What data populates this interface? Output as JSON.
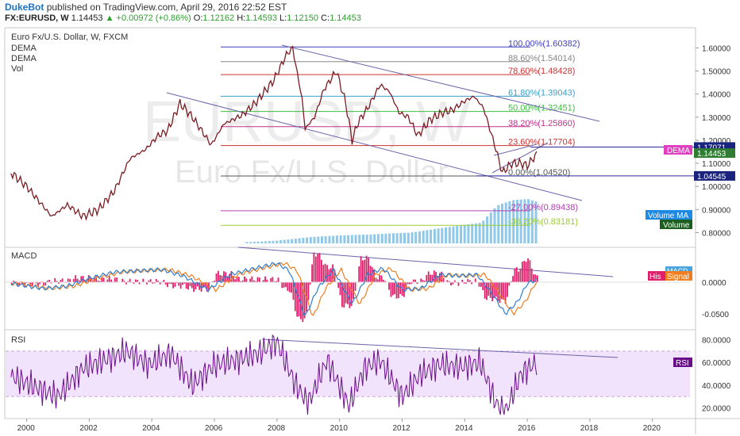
{
  "header": {
    "publisher": "DukeBot",
    "published_text": "published on TradingView.com, April 29, 2016 22:52 EST",
    "symbol": "FX:EURUSD, W",
    "last": "1.14453",
    "change": "+0.00972 (+0.86%)",
    "o_label": "O:",
    "o": "1.12162",
    "h_label": "H:",
    "h": "1.14593",
    "l_label": "L:",
    "l": "1.12150",
    "c_label": "C:",
    "c": "1.14453",
    "up_arrow": "▲"
  },
  "legend": {
    "title": "Euro Fx/U.S. Dollar, W, FXCM",
    "dema1": "DEMA",
    "dema2": "DEMA",
    "vol": "Vol"
  },
  "watermark": {
    "symbol": "EURUSD, W",
    "name": "Euro Fx/U.S. Dollar"
  },
  "panes": {
    "macd_label": "MACD",
    "rsi_label": "RSI"
  },
  "colors": {
    "price_line": "#7a1c22",
    "channel": "#6b63a8",
    "fib_100": "#3f3fbf",
    "fib_886": "#888888",
    "fib_786": "#cc3333",
    "fib_618": "#3aa0c8",
    "fib_50": "#3fbf3f",
    "fib_382": "#c0308a",
    "fib_236": "#cc3333",
    "fib_0": "#555555",
    "fib_m27": "#b040b0",
    "fib_m362": "#9acd32",
    "macd": "#2f7fd0",
    "signal": "#f07e20",
    "histogram": "#e0206a",
    "rsi": "#6a0d8a",
    "rsi_band": "#f1e3fb",
    "volume": "#8fc8e8"
  },
  "chart_data": [
    {
      "type": "line",
      "pane": "price",
      "title": "Euro Fx/U.S. Dollar, W, FXCM",
      "x_ticks": [
        "2000",
        "2002",
        "2004",
        "2006",
        "2008",
        "2010",
        "2012",
        "2014",
        "2016",
        "2018",
        "2020"
      ],
      "y_ticks": [
        "0.80000",
        "0.90000",
        "1.00000",
        "1.10000",
        "1.20000",
        "1.30000",
        "1.40000",
        "1.50000",
        "1.60000"
      ],
      "ylim": [
        0.75,
        1.67
      ],
      "xlim": [
        1999.3,
        2021.2
      ],
      "series": [
        {
          "x": [
            1999.5,
            2000.0,
            2000.8,
            2001.3,
            2001.8,
            2002.3,
            2002.8,
            2003.3,
            2003.8,
            2004.2,
            2004.5,
            2004.9,
            2005.3,
            2005.9,
            2006.3,
            2006.9,
            2007.3,
            2007.9,
            2008.3,
            2008.5,
            2008.8,
            2008.9,
            2009.2,
            2009.5,
            2009.9,
            2010.2,
            2010.4,
            2010.6,
            2010.9,
            2011.3,
            2011.6,
            2011.9,
            2012.2,
            2012.5,
            2012.9,
            2013.3,
            2013.6,
            2014.0,
            2014.3,
            2014.6,
            2014.8,
            2015.0,
            2015.2,
            2015.5,
            2015.8,
            2016.0,
            2016.3
          ],
          "values": [
            1.06,
            1.0,
            0.87,
            0.92,
            0.87,
            0.9,
            0.98,
            1.12,
            1.16,
            1.22,
            1.24,
            1.36,
            1.3,
            1.18,
            1.27,
            1.31,
            1.36,
            1.46,
            1.57,
            1.6,
            1.38,
            1.25,
            1.3,
            1.42,
            1.5,
            1.36,
            1.2,
            1.28,
            1.34,
            1.44,
            1.41,
            1.32,
            1.3,
            1.22,
            1.29,
            1.32,
            1.33,
            1.37,
            1.39,
            1.34,
            1.25,
            1.16,
            1.06,
            1.1,
            1.1,
            1.09,
            1.14
          ]
        },
        {
          "name": "Vol",
          "x": [
            2007.0,
            2008.0,
            2009.0,
            2010.0,
            2011.0,
            2012.0,
            2013.0,
            2014.0,
            2014.5,
            2015.0,
            2015.5,
            2016.0,
            2016.3
          ],
          "values": [
            1,
            2,
            4,
            5,
            6,
            8,
            10,
            12,
            13,
            24,
            28,
            30,
            29
          ]
        }
      ],
      "last_price_label": "1.14453",
      "price_levels": [
        "1.17071",
        "1.04545"
      ],
      "price_tags": {
        "dema": "DEMA",
        "volume_ma": "Volume MA",
        "volume": "Volume"
      },
      "annotations": {
        "fibonacci": [
          {
            "label": "100.00%(1.60382)",
            "value": 1.60382
          },
          {
            "label": "88.60%(1.54014)",
            "value": 1.54014
          },
          {
            "label": "78.60%(1.48428)",
            "value": 1.48428
          },
          {
            "label": "61.80%(1.39043)",
            "value": 1.39043
          },
          {
            "label": "50.00%(1.32451)",
            "value": 1.32451
          },
          {
            "label": "38.20%(1.25860)",
            "value": 1.2586
          },
          {
            "label": "23.60%(1.17704)",
            "value": 1.17704
          },
          {
            "label": "0.00%(1.04520)",
            "value": 1.0452
          },
          {
            "label": "-27.00%(0.89438)",
            "value": 0.89438
          },
          {
            "label": "-36.20%(0.83181)",
            "value": 0.83181
          }
        ]
      }
    },
    {
      "type": "line",
      "pane": "macd",
      "title": "MACD",
      "y_ticks": [
        "0.0000",
        "-0.0500"
      ],
      "ylim": [
        -0.07,
        0.05
      ],
      "series": [
        {
          "name": "MACD",
          "x": [
            1999.5,
            2000.5,
            2001.3,
            2002.0,
            2002.8,
            2003.5,
            2004.3,
            2005.0,
            2005.8,
            2006.5,
            2007.3,
            2008.0,
            2008.4,
            2008.9,
            2009.3,
            2009.8,
            2010.4,
            2010.9,
            2011.4,
            2012.0,
            2012.6,
            2013.2,
            2013.8,
            2014.4,
            2014.9,
            2015.3,
            2015.7,
            2016.0,
            2016.3
          ],
          "values": [
            -0.002,
            -0.01,
            -0.006,
            0.006,
            0.016,
            0.018,
            0.02,
            0.01,
            -0.012,
            0.012,
            0.022,
            0.03,
            0.018,
            -0.055,
            -0.01,
            0.02,
            -0.035,
            0.012,
            0.022,
            -0.012,
            -0.01,
            0.012,
            0.01,
            0.012,
            -0.02,
            -0.05,
            -0.03,
            -0.002,
            0.004
          ]
        }
      ],
      "legend_tags": {
        "histogram": "His",
        "signal": "Signal",
        "macd": "MACD"
      }
    },
    {
      "type": "line",
      "pane": "rsi",
      "title": "RSI",
      "y_ticks": [
        "20.0000",
        "40.0000",
        "60.0000",
        "80.0000"
      ],
      "ylim": [
        12,
        86
      ],
      "overbought": 70,
      "oversold": 30,
      "series": [
        {
          "name": "RSI",
          "x": [
            1999.5,
            2000.3,
            2001.0,
            2001.8,
            2002.5,
            2003.2,
            2003.9,
            2004.6,
            2005.3,
            2006.0,
            2006.7,
            2007.4,
            2008.0,
            2008.6,
            2009.0,
            2009.6,
            2010.3,
            2010.8,
            2011.3,
            2012.0,
            2012.6,
            2013.2,
            2013.9,
            2014.5,
            2015.0,
            2015.3,
            2015.8,
            2016.3
          ],
          "values": [
            48,
            38,
            30,
            55,
            62,
            70,
            58,
            68,
            40,
            58,
            62,
            68,
            78,
            40,
            24,
            62,
            22,
            55,
            62,
            30,
            50,
            58,
            56,
            60,
            24,
            16,
            50,
            60
          ]
        }
      ],
      "legend_tags": {
        "rsi": "RSI"
      }
    }
  ]
}
